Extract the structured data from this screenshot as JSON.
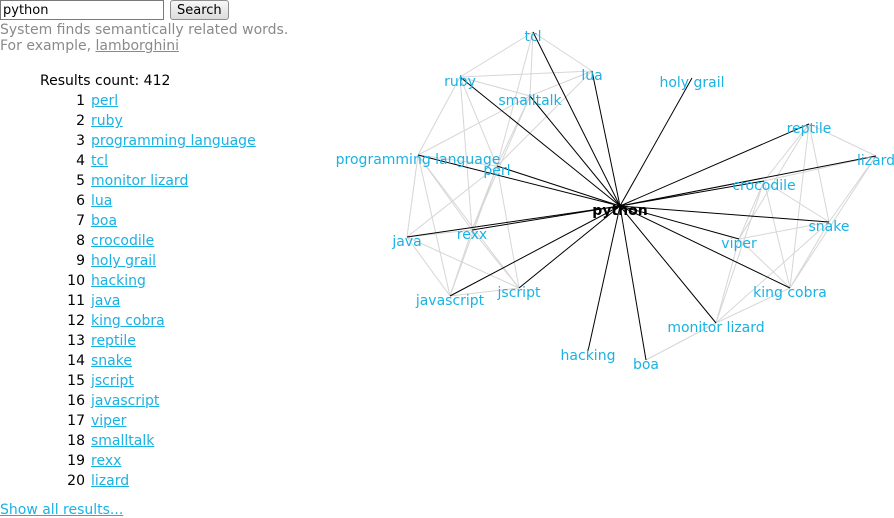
{
  "search": {
    "value": "python",
    "button_label": "Search"
  },
  "hint": {
    "line1": "System finds semantically related words.",
    "example_prefix": "For example, ",
    "example_word": "lamborghini"
  },
  "results": {
    "count_label": "Results count: 412",
    "items": [
      {
        "rank": "1",
        "label": "perl"
      },
      {
        "rank": "2",
        "label": "ruby"
      },
      {
        "rank": "3",
        "label": "programming language"
      },
      {
        "rank": "4",
        "label": "tcl"
      },
      {
        "rank": "5",
        "label": "monitor lizard"
      },
      {
        "rank": "6",
        "label": "lua"
      },
      {
        "rank": "7",
        "label": "boa"
      },
      {
        "rank": "8",
        "label": "crocodile"
      },
      {
        "rank": "9",
        "label": "holy grail"
      },
      {
        "rank": "10",
        "label": "hacking"
      },
      {
        "rank": "11",
        "label": "java"
      },
      {
        "rank": "12",
        "label": "king cobra"
      },
      {
        "rank": "13",
        "label": "reptile"
      },
      {
        "rank": "14",
        "label": "snake"
      },
      {
        "rank": "15",
        "label": "jscript"
      },
      {
        "rank": "16",
        "label": "javascript"
      },
      {
        "rank": "17",
        "label": "viper"
      },
      {
        "rank": "18",
        "label": "smalltalk"
      },
      {
        "rank": "19",
        "label": "rexx"
      },
      {
        "rank": "20",
        "label": "lizard"
      }
    ],
    "show_all_label": "Show all results..."
  },
  "graph": {
    "center": "python",
    "colors": {
      "node": "#1ab2e3",
      "center_edge": "#000000",
      "side_edge": "#d6d6d6"
    },
    "nodes": [
      "tcl",
      "lua",
      "ruby",
      "smalltalk",
      "holy grail",
      "reptile",
      "programming language",
      "perl",
      "lizard",
      "crocodile",
      "rexx",
      "java",
      "viper",
      "snake",
      "javascript",
      "jscript",
      "king cobra",
      "monitor lizard",
      "hacking",
      "boa"
    ],
    "side_edges": [
      [
        "tcl",
        "lua"
      ],
      [
        "tcl",
        "ruby"
      ],
      [
        "tcl",
        "smalltalk"
      ],
      [
        "tcl",
        "perl"
      ],
      [
        "ruby",
        "lua"
      ],
      [
        "ruby",
        "smalltalk"
      ],
      [
        "ruby",
        "programming language"
      ],
      [
        "ruby",
        "perl"
      ],
      [
        "ruby",
        "rexx"
      ],
      [
        "smalltalk",
        "lua"
      ],
      [
        "smalltalk",
        "perl"
      ],
      [
        "smalltalk",
        "rexx"
      ],
      [
        "smalltalk",
        "programming language"
      ],
      [
        "programming language",
        "perl"
      ],
      [
        "programming language",
        "java"
      ],
      [
        "programming language",
        "rexx"
      ],
      [
        "programming language",
        "javascript"
      ],
      [
        "programming language",
        "jscript"
      ],
      [
        "perl",
        "rexx"
      ],
      [
        "perl",
        "java"
      ],
      [
        "perl",
        "jscript"
      ],
      [
        "perl",
        "javascript"
      ],
      [
        "rexx",
        "java"
      ],
      [
        "rexx",
        "javascript"
      ],
      [
        "rexx",
        "jscript"
      ],
      [
        "java",
        "javascript"
      ],
      [
        "java",
        "jscript"
      ],
      [
        "javascript",
        "jscript"
      ],
      [
        "lua",
        "perl"
      ],
      [
        "reptile",
        "lizard"
      ],
      [
        "reptile",
        "crocodile"
      ],
      [
        "reptile",
        "snake"
      ],
      [
        "reptile",
        "viper"
      ],
      [
        "reptile",
        "king cobra"
      ],
      [
        "lizard",
        "crocodile"
      ],
      [
        "lizard",
        "snake"
      ],
      [
        "lizard",
        "king cobra"
      ],
      [
        "crocodile",
        "snake"
      ],
      [
        "crocodile",
        "viper"
      ],
      [
        "crocodile",
        "king cobra"
      ],
      [
        "crocodile",
        "monitor lizard"
      ],
      [
        "snake",
        "viper"
      ],
      [
        "snake",
        "king cobra"
      ],
      [
        "viper",
        "king cobra"
      ],
      [
        "viper",
        "monitor lizard"
      ],
      [
        "monitor lizard",
        "boa"
      ],
      [
        "king cobra",
        "monitor lizard"
      ],
      [
        "snake",
        "monitor lizard"
      ]
    ]
  }
}
